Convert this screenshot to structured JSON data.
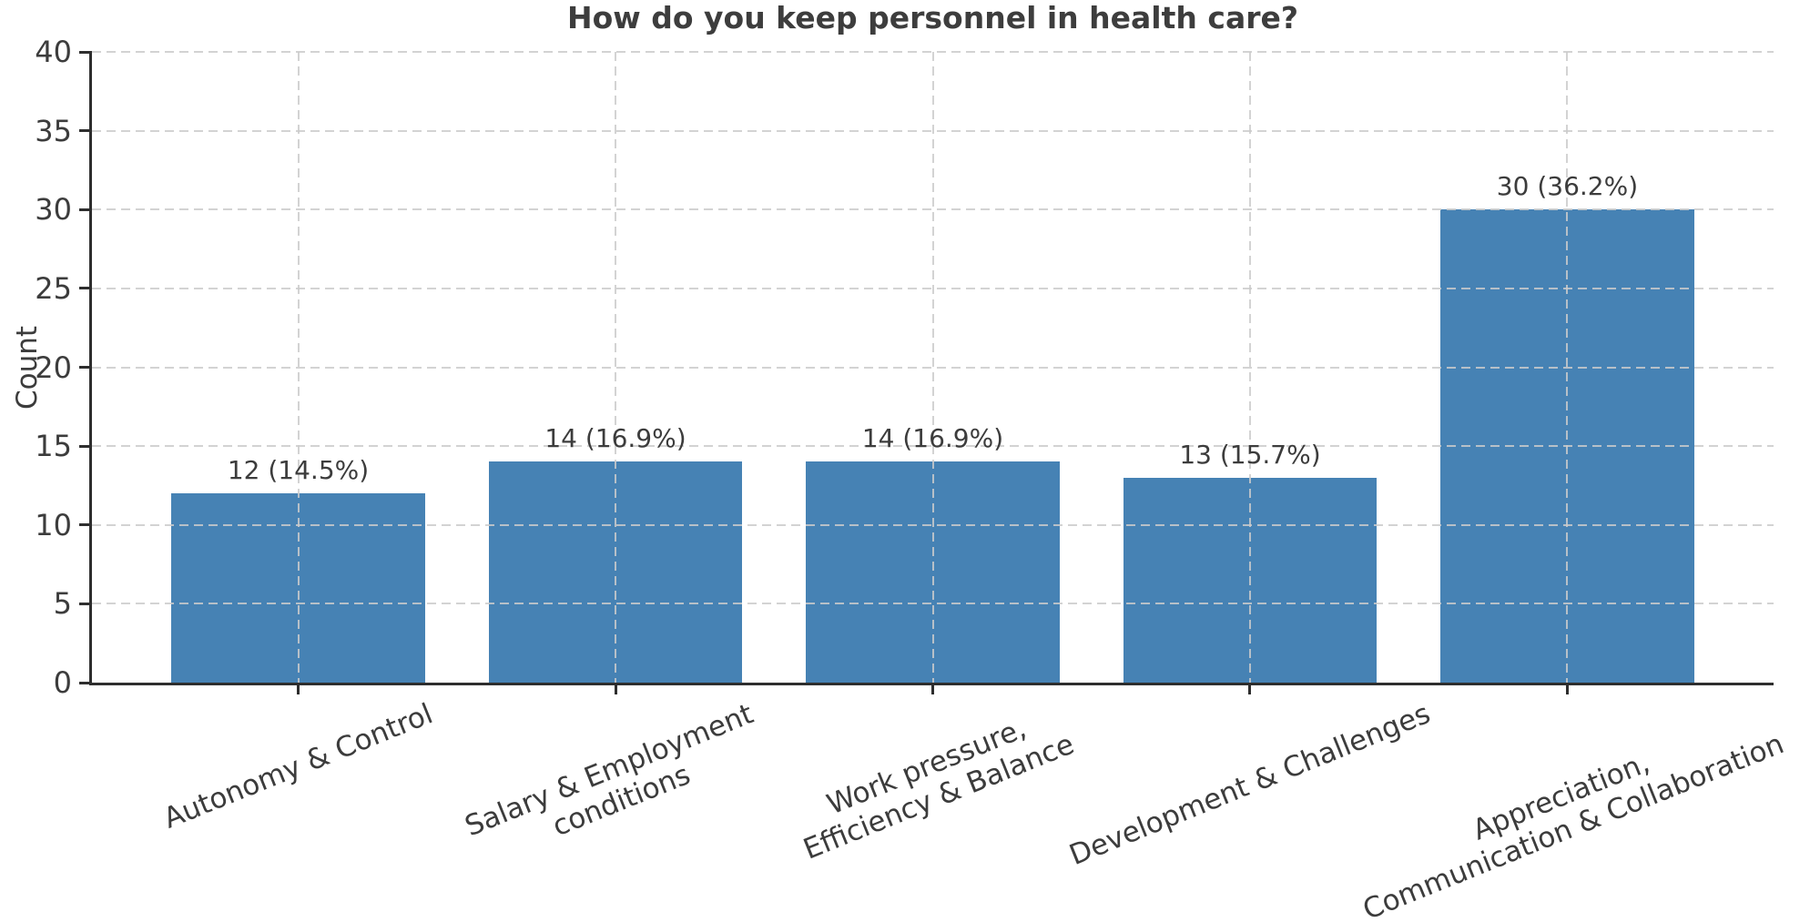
{
  "chart_data": {
    "type": "bar",
    "title": "How do you keep personnel in health care?",
    "xlabel": "",
    "ylabel": "Count",
    "ylim": [
      0,
      40
    ],
    "ytick_step": 5,
    "y_tick_labels": [
      "0",
      "5",
      "10",
      "15",
      "20",
      "25",
      "30",
      "35",
      "40"
    ],
    "categories": [
      "Autonomy & Control",
      "Salary & Employment\nconditions",
      "Work pressure,\nEfficiency & Balance",
      "Development & Challenges",
      "Appreciation,\nCommunication & Collaboration"
    ],
    "values": [
      12,
      14,
      14,
      13,
      30
    ],
    "bar_labels": [
      "12 (14.5%)",
      "14 (16.9%)",
      "14 (16.9%)",
      "13 (15.7%)",
      "30 (36.2%)"
    ],
    "percentages": [
      14.5,
      16.9,
      16.9,
      15.7,
      36.2
    ],
    "x_tick_rotation_deg": 22,
    "grid": "dashed horizontal lines at every y tick and dashed vertical lines at every bar center, drawn above bars",
    "legend": "none",
    "colors": {
      "bar": "#4682b4",
      "grid": "#d2d2d2",
      "spine": "#2e2e2e",
      "text": "#3c3c3c",
      "title": "#3d3d3d"
    }
  }
}
